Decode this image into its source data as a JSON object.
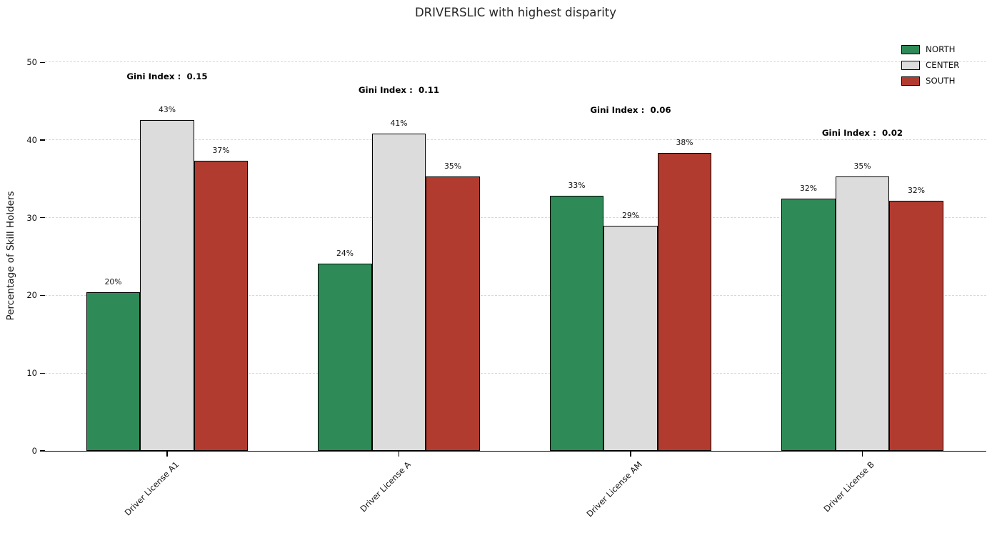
{
  "chart_data": {
    "type": "bar",
    "title": "DRIVERSLIC with highest disparity",
    "xlabel": "",
    "ylabel": "Percentage of Skill Holders",
    "categories": [
      "Driver License A1",
      "Driver License A",
      "Driver License AM",
      "Driver License B"
    ],
    "series": [
      {
        "name": "NORTH",
        "color": "#2e8b57",
        "values": [
          20.4,
          24.1,
          32.8,
          32.5
        ],
        "bar_labels": [
          "20%",
          "24%",
          "33%",
          "32%"
        ]
      },
      {
        "name": "CENTER",
        "color": "#dcdcdc",
        "values": [
          42.6,
          40.8,
          29.0,
          35.3
        ],
        "bar_labels": [
          "43%",
          "41%",
          "29%",
          "35%"
        ]
      },
      {
        "name": "SOUTH",
        "color": "#b23b2f",
        "values": [
          37.3,
          35.3,
          38.3,
          32.2
        ],
        "bar_labels": [
          "37%",
          "35%",
          "38%",
          "32%"
        ]
      }
    ],
    "annotations": [
      {
        "text": "Gini Index :  0.15",
        "category_index": 0,
        "y": 48.2
      },
      {
        "text": "Gini Index :  0.11",
        "category_index": 1,
        "y": 46.4
      },
      {
        "text": "Gini Index :  0.06",
        "category_index": 2,
        "y": 43.9
      },
      {
        "text": "Gini Index :  0.02",
        "category_index": 3,
        "y": 40.9
      }
    ],
    "yticks": [
      0,
      10,
      20,
      30,
      40,
      50
    ],
    "ylim": [
      0,
      52.5
    ],
    "grid": {
      "axis": "y",
      "style": "dashed",
      "color": "#d8d8d8",
      "axisbelow": true
    },
    "legend": {
      "position": "upper right",
      "entries": [
        "NORTH",
        "CENTER",
        "SOUTH"
      ]
    },
    "bar_edge_color": "#000000",
    "background": "#ffffff"
  }
}
